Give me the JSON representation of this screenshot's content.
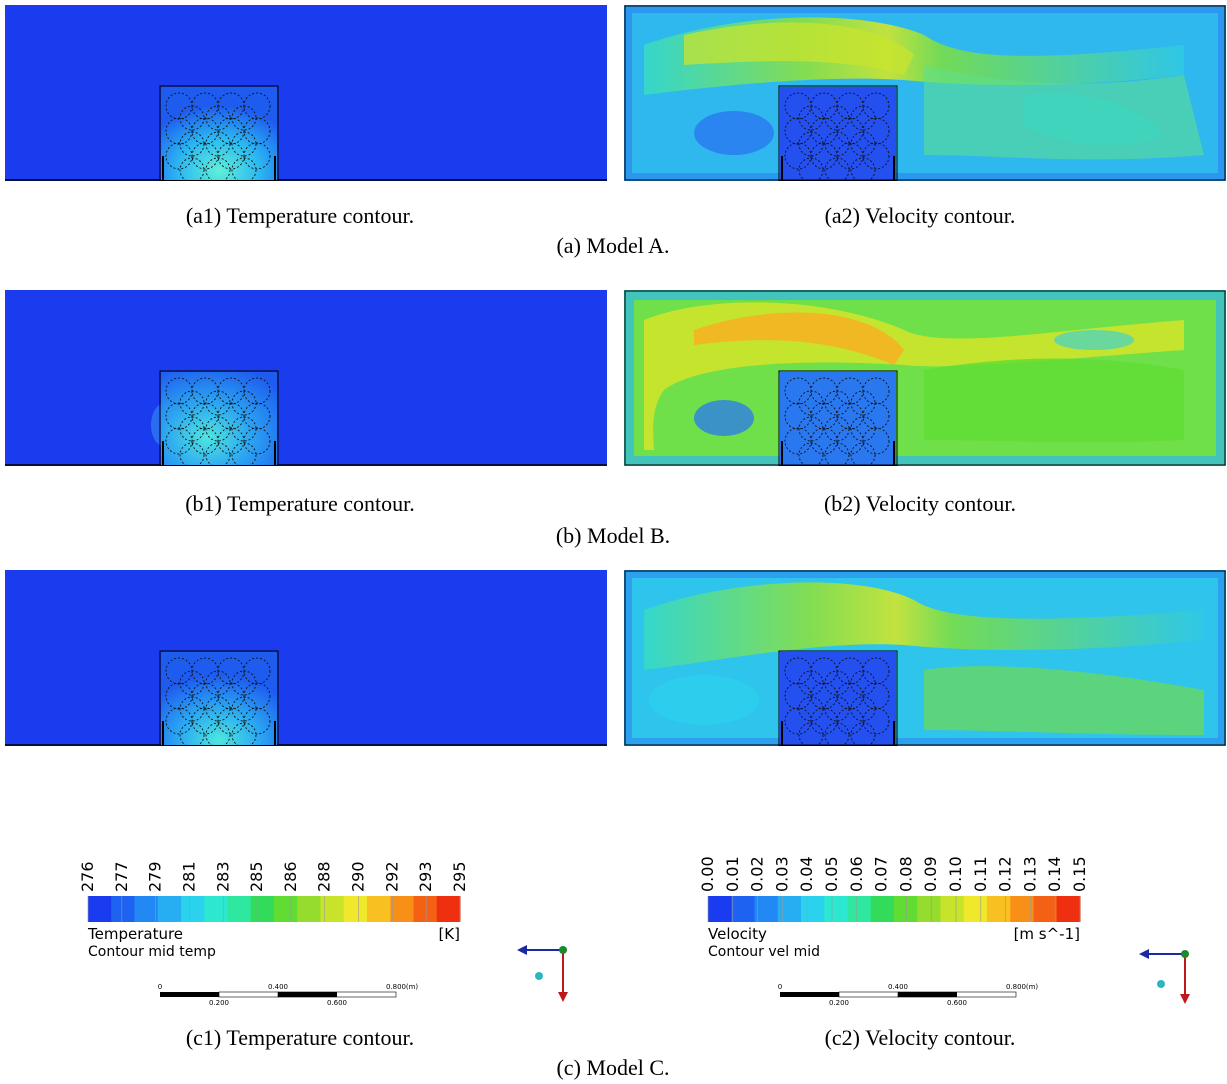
{
  "captions": {
    "a1": "(a1) Temperature contour.",
    "a2": "(a2) Velocity contour.",
    "a": "(a) Model A.",
    "b1": "(b1) Temperature contour.",
    "b2": "(b2) Velocity contour.",
    "b": "(b) Model B.",
    "c1": "(c1) Temperature contour.",
    "c2": "(c2) Velocity contour.",
    "c": "(c) Model C."
  },
  "temp_legend": {
    "ticks": [
      "276",
      "277",
      "279",
      "281",
      "283",
      "285",
      "286",
      "288",
      "290",
      "292",
      "293",
      "295"
    ],
    "title": "Temperature",
    "unit": "[K]",
    "subtitle": "Contour mid temp",
    "colors": [
      "#1a3cf0",
      "#1e62f2",
      "#2289f4",
      "#27aef2",
      "#2bd2ee",
      "#2de8d0",
      "#2fe8a0",
      "#32dc5a",
      "#60dc32",
      "#96dc2e",
      "#c8e42a",
      "#f0e82a",
      "#f8c020",
      "#f89018",
      "#f46014",
      "#ee3010"
    ],
    "scale": {
      "v0": "0",
      "v1": "0.200",
      "v2": "0.400",
      "v3": "0.600",
      "v4": "0.800",
      "unit": "(m)"
    }
  },
  "vel_legend": {
    "ticks": [
      "0.00",
      "0.01",
      "0.02",
      "0.03",
      "0.04",
      "0.05",
      "0.06",
      "0.07",
      "0.08",
      "0.09",
      "0.10",
      "0.11",
      "0.12",
      "0.13",
      "0.14",
      "0.15"
    ],
    "title": "Velocity",
    "unit": "[m s^-1]",
    "subtitle": "Contour vel mid",
    "colors": [
      "#1a3cf0",
      "#1e62f2",
      "#2289f4",
      "#27aef2",
      "#2bd2ee",
      "#2de8d0",
      "#2fe8a0",
      "#32dc5a",
      "#60dc32",
      "#96dc2e",
      "#c8e42a",
      "#f0e82a",
      "#f8c020",
      "#f89018",
      "#f46014",
      "#ee3010"
    ],
    "scale": {
      "v0": "0",
      "v1": "0.200",
      "v2": "0.400",
      "v3": "0.600",
      "v4": "0.800",
      "unit": "(m)"
    }
  }
}
